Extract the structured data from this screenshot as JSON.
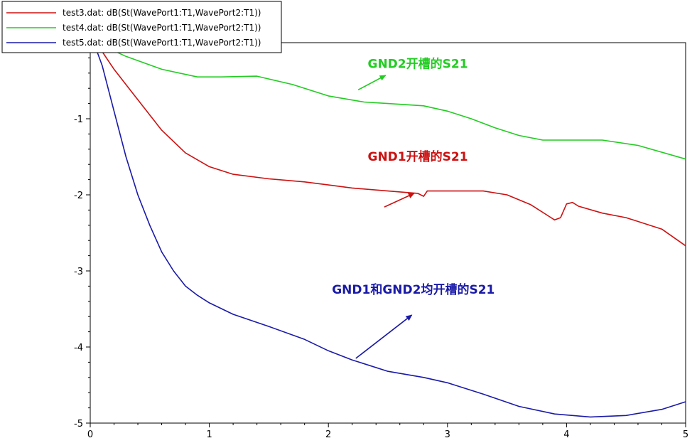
{
  "chart_data": {
    "type": "line",
    "xlim": [
      0,
      5
    ],
    "ylim": [
      -5,
      0
    ],
    "grid": false,
    "legend_placement": "top-left",
    "x_ticks": [
      "0",
      "1",
      "2",
      "3",
      "4",
      "5"
    ],
    "y_ticks": [
      "-1",
      "-2",
      "-3",
      "-4",
      "-5"
    ],
    "series": [
      {
        "name": "test3.dat: dB(St(WavePort1:T1,WavePort2:T1))",
        "color": "#cc1111",
        "x": [
          0.05,
          0.2,
          0.4,
          0.6,
          0.8,
          1.0,
          1.2,
          1.5,
          1.8,
          2.0,
          2.2,
          2.5,
          2.75,
          2.8,
          2.83,
          3.0,
          3.3,
          3.5,
          3.7,
          3.85,
          3.9,
          3.95,
          4.0,
          4.05,
          4.1,
          4.3,
          4.5,
          4.8,
          5.0
        ],
        "y": [
          0.0,
          -0.35,
          -0.75,
          -1.15,
          -1.45,
          -1.63,
          -1.73,
          -1.79,
          -1.83,
          -1.87,
          -1.91,
          -1.95,
          -1.98,
          -2.02,
          -1.95,
          -1.95,
          -1.95,
          -2.0,
          -2.13,
          -2.28,
          -2.33,
          -2.3,
          -2.12,
          -2.1,
          -2.15,
          -2.24,
          -2.3,
          -2.45,
          -2.67
        ]
      },
      {
        "name": "test4.dat: dB(St(WavePort1:T1,WavePort2:T1))",
        "color": "#22cc22",
        "x": [
          0.05,
          0.3,
          0.6,
          0.9,
          1.1,
          1.4,
          1.7,
          2.0,
          2.3,
          2.5,
          2.8,
          3.0,
          3.2,
          3.4,
          3.6,
          3.8,
          4.0,
          4.3,
          4.6,
          5.0
        ],
        "y": [
          0.0,
          -0.18,
          -0.35,
          -0.45,
          -0.45,
          -0.44,
          -0.55,
          -0.7,
          -0.78,
          -0.8,
          -0.83,
          -0.9,
          -1.0,
          -1.12,
          -1.22,
          -1.28,
          -1.28,
          -1.28,
          -1.35,
          -1.53
        ]
      },
      {
        "name": "test5.dat: dB(St(WavePort1:T1,WavePort2:T1))",
        "color": "#1a1aa8",
        "x": [
          0.03,
          0.1,
          0.2,
          0.3,
          0.4,
          0.5,
          0.6,
          0.7,
          0.8,
          0.9,
          1.0,
          1.2,
          1.5,
          1.8,
          2.0,
          2.2,
          2.5,
          2.8,
          3.0,
          3.3,
          3.6,
          3.9,
          4.2,
          4.5,
          4.8,
          5.0
        ],
        "y": [
          0.0,
          -0.3,
          -0.9,
          -1.5,
          -2.0,
          -2.4,
          -2.75,
          -3.0,
          -3.2,
          -3.32,
          -3.42,
          -3.57,
          -3.73,
          -3.9,
          -4.05,
          -4.17,
          -4.32,
          -4.4,
          -4.47,
          -4.62,
          -4.78,
          -4.88,
          -4.92,
          -4.9,
          -4.82,
          -4.72
        ]
      }
    ],
    "annotations": [
      {
        "text": "GND2开槽的S21",
        "color": "#22cc22",
        "arrow_from": [
          2.25,
          -0.62
        ],
        "arrow_to": [
          2.48,
          -0.43
        ],
        "text_at": [
          2.33,
          -0.33
        ]
      },
      {
        "text": "GND1开槽的S21",
        "color": "#cc1111",
        "arrow_from": [
          2.47,
          -2.16
        ],
        "arrow_to": [
          2.72,
          -1.98
        ],
        "text_at": [
          2.33,
          -1.55
        ]
      },
      {
        "text": "GND1和GND2均开槽的S21",
        "color": "#1a1aa8",
        "arrow_from": [
          2.23,
          -4.15
        ],
        "arrow_to": [
          2.7,
          -3.58
        ],
        "text_at": [
          2.03,
          -3.3
        ]
      }
    ]
  }
}
